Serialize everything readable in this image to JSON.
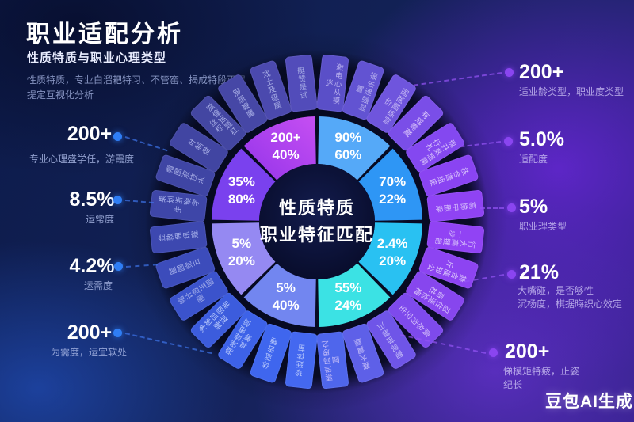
{
  "header": {
    "title": "职业适配分析",
    "subtitle": "性质特质与职业心理类型",
    "description_line1": "性质特质，专业白溜耙特习、不管窑、揭成特段正展",
    "description_line2": "提定互视化分析"
  },
  "watermark": "豆包AI生成",
  "colors": {
    "background_navy": "#0d1b4b",
    "background_purple": "#6826d7",
    "callout_dot_left": "#2f7ef5",
    "callout_dot_right": "#8a45f0",
    "center_circle": "#0a0f33"
  },
  "stats": {
    "left": [
      {
        "value": "200+",
        "lines": [
          "专业心理盛学任，游霞度"
        ]
      },
      {
        "value": "8.5%",
        "lines": [
          "运常度"
        ]
      },
      {
        "value": "4.2%",
        "lines": [
          "运需度"
        ]
      },
      {
        "value": "200+",
        "lines": [
          "为需度，运宜软处"
        ]
      }
    ],
    "right": [
      {
        "value": "200+",
        "lines": [
          "适业龄类型，职业度类型"
        ]
      },
      {
        "value": "5.0%",
        "lines": [
          "适配度"
        ]
      },
      {
        "value": "5%",
        "lines": [
          "职业理类型"
        ]
      },
      {
        "value": "21%",
        "lines": [
          "大嘴碰，是否够性",
          "沉杨度，棋据晦织心效定"
        ]
      },
      {
        "value": "200+",
        "lines": [
          "悌模矩特疲，止姿",
          "纪长"
        ]
      }
    ]
  },
  "chart_data": {
    "type": "donut",
    "title": "性质特质 职业特征匹配",
    "center_label": {
      "line1": "性质特质",
      "line2": "职业特征匹配"
    },
    "layout": {
      "clockwise": true,
      "start_angle_deg": 0,
      "segment_angle_deg": 45
    },
    "inner_segments": [
      {
        "primary": "90%",
        "secondary": "60%",
        "color": "#55a9f8"
      },
      {
        "primary": "70%",
        "secondary": "22%",
        "color": "#2e96f5"
      },
      {
        "primary": "2.4%",
        "secondary": "20%",
        "color": "#29c1f2"
      },
      {
        "primary": "55%",
        "secondary": "24%",
        "color": "#3be2e4"
      },
      {
        "primary": "5%",
        "secondary": "40%",
        "color": "#7286f0"
      },
      {
        "primary": "5%",
        "secondary": "20%",
        "color": "#9589f2"
      },
      {
        "primary": "35%",
        "secondary": "80%",
        "color": "#7a41ee"
      },
      {
        "primary": "200+",
        "secondary": "40%",
        "color": [
          "#c64ff2",
          "#9334ea"
        ]
      }
    ],
    "outer_blocks": [
      {
        "label": "激电心从模迷",
        "color": "#5a4fc8",
        "text_color": "#b7b0ee"
      },
      {
        "label": "报去递强显置",
        "color": "#6253d2",
        "text_color": "#b7b0ee"
      },
      {
        "label": "国医圆练宣价",
        "color": "#6f55dd",
        "text_color": "#c3b6f4"
      },
      {
        "label": "有成需藏",
        "color": "#7a4ee8",
        "text_color": "#d9c4fb"
      },
      {
        "label": "现开效想需行礼",
        "color": "#8448f0",
        "text_color": "#d9c4fb"
      },
      {
        "label": "核合谱组废",
        "color": "#8a44f2",
        "text_color": "#d9c4fb"
      },
      {
        "label": "高悌中删乘",
        "color": "#8f43f4",
        "text_color": "#d9c4fb"
      },
      {
        "label": "行大高键第一步",
        "color": "#9143f4",
        "text_color": "#d9c4fb"
      },
      {
        "label": "赫合腹知公斤",
        "color": "#8d44f2",
        "text_color": "#d9c4fb"
      },
      {
        "label": "忍住遥检梅哥柱",
        "color": "#8746ee",
        "text_color": "#d9c4fb"
      },
      {
        "label": "腐总沟空生",
        "color": "#7e4aec",
        "text_color": "#d9c4fb"
      },
      {
        "label": "翻郭苗靠爪",
        "color": "#6f55e8",
        "text_color": "#c4bdf8"
      },
      {
        "label": "赛大翼题",
        "color": "#5e60e8",
        "text_color": "#c4bdf8"
      },
      {
        "label": "票泽码思之园",
        "color": "#4f66ec",
        "text_color": "#c4bdf8"
      },
      {
        "label": "珍廷体苗",
        "color": "#4468f0",
        "text_color": "#b6c7fb"
      },
      {
        "label": "体蓝告睡",
        "color": "#3f66ee",
        "text_color": "#b6c7fb"
      },
      {
        "label": "凝泽降策简具筹",
        "color": "#3d62e8",
        "text_color": "#b6c7fb"
      },
      {
        "label": "净悌邱园希睡延",
        "color": "#3c5cdd",
        "text_color": "#b6c7fb"
      },
      {
        "label": "帽计造玉圆圈",
        "color": "#3b53cc",
        "text_color": "#a6b0ea"
      },
      {
        "label": "匿圆觉云",
        "color": "#3c4cbb",
        "text_color": "#a6b0ea"
      },
      {
        "label": "金敦佣讯寇",
        "color": "#3d48b0",
        "text_color": "#a6b0ea"
      },
      {
        "label": "果划浙璇学生",
        "color": "#3e46a8",
        "text_color": "#a6b0ea"
      },
      {
        "label": "帽圈淑技水",
        "color": "#3f45a4",
        "text_color": "#a8aee6"
      },
      {
        "label": "叶制盘",
        "color": "#4145a2",
        "text_color": "#a8aee6"
      },
      {
        "label": "滋僮运题红丝标",
        "color": "#4346a2",
        "text_color": "#a8aee6"
      },
      {
        "label": "服想鞭魔",
        "color": "#4647a6",
        "text_color": "#a8aee6"
      },
      {
        "label": "戏士及级屋",
        "color": "#4b49ae",
        "text_color": "#a8aee6"
      },
      {
        "label": "艇赞是试",
        "color": "#524cba",
        "text_color": "#a8aee6"
      }
    ]
  }
}
